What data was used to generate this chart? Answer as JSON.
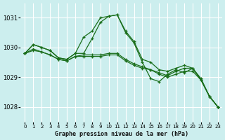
{
  "bg_color": "#cceeee",
  "plot_bg_color": "#cceeee",
  "grid_color": "#ffffff",
  "line_color": "#1a6e1a",
  "title": "Graphe pression niveau de la mer (hPa)",
  "xlim": [
    -0.5,
    23.5
  ],
  "ylim": [
    1027.5,
    1031.5
  ],
  "yticks": [
    1028,
    1029,
    1030,
    1031
  ],
  "ytick_labels": [
    "1028",
    "1029",
    "1030",
    "1031"
  ],
  "xticks": [
    0,
    1,
    2,
    3,
    4,
    5,
    6,
    7,
    8,
    9,
    10,
    11,
    12,
    13,
    14,
    15,
    16,
    17,
    18,
    19,
    20,
    21,
    22,
    23
  ],
  "series": [
    {
      "x": [
        0,
        1,
        2,
        3,
        4,
        5,
        6,
        7,
        8,
        9,
        10,
        11,
        12,
        13,
        14,
        15,
        16,
        17,
        18,
        19,
        20,
        21,
        22,
        23
      ],
      "y": [
        1029.8,
        1030.1,
        1030.0,
        1029.9,
        1029.65,
        1029.6,
        1029.8,
        1030.35,
        1030.55,
        1031.0,
        1031.05,
        1031.1,
        1030.55,
        1030.2,
        1029.6,
        1029.5,
        1029.25,
        1029.2,
        1029.3,
        1029.4,
        1029.3,
        1028.9,
        1028.35,
        1028.0
      ]
    },
    {
      "x": [
        0,
        1,
        2,
        3,
        4,
        5,
        6,
        7,
        8,
        9,
        10,
        11,
        12,
        13,
        14,
        15,
        16,
        17,
        18,
        19,
        20,
        21,
        22,
        23
      ],
      "y": [
        1029.8,
        1029.95,
        1029.85,
        1029.75,
        1029.6,
        1029.55,
        1029.7,
        1029.7,
        1029.7,
        1029.7,
        1029.75,
        1029.75,
        1029.55,
        1029.4,
        1029.3,
        1029.25,
        1029.1,
        1029.0,
        1029.1,
        1029.2,
        1029.2,
        1028.9,
        1028.35,
        1028.0
      ]
    },
    {
      "x": [
        0,
        1,
        2,
        3,
        4,
        5,
        6,
        7,
        8,
        9,
        10,
        11,
        12,
        13,
        14,
        15,
        16,
        17,
        18,
        19,
        20,
        21,
        22,
        23
      ],
      "y": [
        1029.8,
        1030.1,
        1030.0,
        1029.9,
        1029.65,
        1029.6,
        1029.8,
        1029.8,
        1030.3,
        1030.85,
        1031.05,
        1031.1,
        1030.5,
        1030.15,
        1029.5,
        1028.95,
        1028.85,
        1029.1,
        1029.25,
        1029.15,
        1029.3,
        1028.9,
        1028.35,
        1028.0
      ]
    },
    {
      "x": [
        0,
        1,
        2,
        3,
        4,
        5,
        6,
        7,
        8,
        9,
        10,
        11,
        12,
        13,
        14,
        15,
        16,
        17,
        18,
        19,
        20,
        21,
        22,
        23
      ],
      "y": [
        1029.8,
        1029.9,
        1029.85,
        1029.75,
        1029.6,
        1029.55,
        1029.7,
        1029.75,
        1029.75,
        1029.75,
        1029.8,
        1029.8,
        1029.6,
        1029.45,
        1029.35,
        1029.25,
        1029.15,
        1029.05,
        1029.2,
        1029.3,
        1029.3,
        1028.95,
        1028.35,
        1028.0
      ]
    }
  ]
}
